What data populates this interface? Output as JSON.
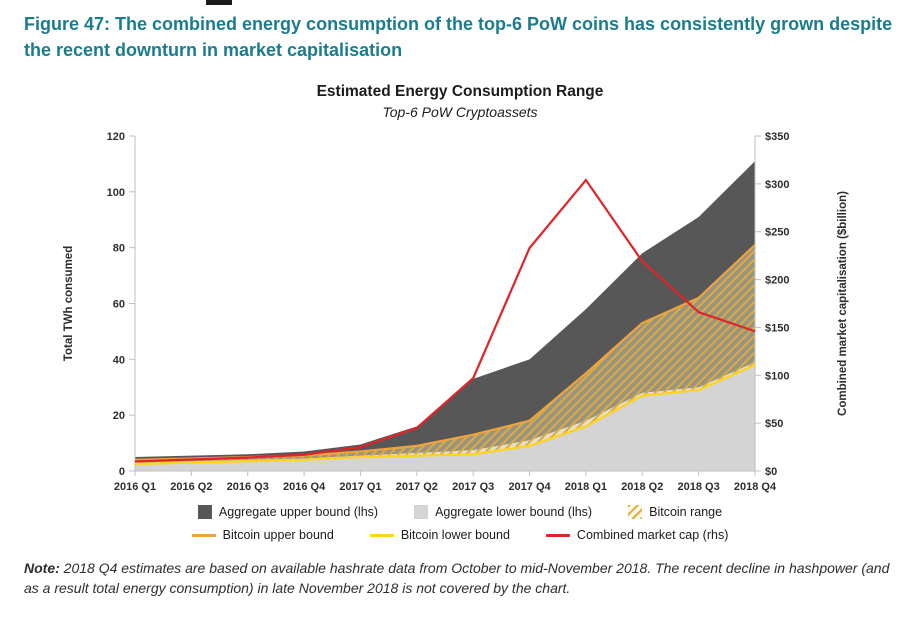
{
  "figure": {
    "title": "Figure 47: The combined energy consumption of the top-6 PoW coins has consistently grown despite the recent downturn in market capitalisation"
  },
  "note": {
    "label": "Note:",
    "text": " 2018 Q4 estimates are based on available hashrate data from October to mid-November 2018. The recent decline in hashpower (and as a result total energy consumption) in late November 2018 is not covered by the chart."
  },
  "colors": {
    "figure_title": "#1b7c8e",
    "aggregate_upper": "#575757",
    "aggregate_lower": "#d4d4d4",
    "bitcoin_hatch": "#dcab3c",
    "bitcoin_hatch_bg": "#faf0c8",
    "bitcoin_upper": "#f0a33c",
    "bitcoin_lower": "#ffd41c",
    "market_cap": "#e02428",
    "axis": "#bfbfbf",
    "text": "#2e2e2e"
  },
  "chart_data": {
    "type": "area",
    "title": "Estimated Energy Consumption Range",
    "subtitle": "Top-6 PoW Cryptoassets",
    "categories": [
      "2016 Q1",
      "2016 Q2",
      "2016 Q3",
      "2016 Q4",
      "2017 Q1",
      "2017 Q2",
      "2017 Q3",
      "2017 Q4",
      "2018 Q1",
      "2018 Q2",
      "2018 Q3",
      "2018 Q4"
    ],
    "left_axis": {
      "label": "Total TWh consumed",
      "min": 0,
      "max": 120,
      "tick_step": 20,
      "tick_prefix": ""
    },
    "right_axis": {
      "label": "Combined market capitalisation ($billion)",
      "min": 0,
      "max": 350,
      "tick_step": 50,
      "tick_prefix": "$"
    },
    "grid": false,
    "series": [
      {
        "id": "aggregate_upper",
        "name": "Aggregate upper bound (lhs)",
        "type": "area",
        "axis": "left",
        "color": "aggregate_upper",
        "swatch": "box",
        "values": [
          5,
          5.5,
          6,
          7,
          9.5,
          16,
          33,
          40,
          58,
          78,
          91,
          111
        ]
      },
      {
        "id": "aggregate_lower",
        "name": "Aggregate lower bound (lhs)",
        "type": "area",
        "axis": "left",
        "color": "aggregate_lower",
        "swatch": "box",
        "values": [
          3,
          3.5,
          4,
          4.5,
          5.5,
          6.5,
          7.5,
          11,
          18,
          28,
          30,
          39
        ]
      },
      {
        "id": "bitcoin_range",
        "name": "Bitcoin range",
        "type": "band",
        "axis": "left",
        "color": "bitcoin_hatch",
        "swatch": "hatch",
        "upper_from": "bitcoin_upper",
        "lower_from": "bitcoin_lower"
      },
      {
        "id": "bitcoin_upper",
        "name": "Bitcoin upper bound",
        "type": "line",
        "axis": "left",
        "color": "bitcoin_upper",
        "swatch": "line",
        "values": [
          4,
          4.5,
          5,
          5.5,
          7,
          9,
          13,
          18,
          35,
          53,
          62,
          81
        ]
      },
      {
        "id": "bitcoin_lower",
        "name": "Bitcoin lower bound",
        "type": "line",
        "axis": "left",
        "color": "bitcoin_lower",
        "swatch": "line",
        "values": [
          2.5,
          3,
          3.5,
          4,
          5,
          5.5,
          6,
          9,
          16,
          27,
          29,
          38
        ]
      },
      {
        "id": "market_cap",
        "name": "Combined market cap (rhs)",
        "type": "line",
        "axis": "right",
        "color": "market_cap",
        "swatch": "line",
        "values": [
          10,
          12,
          14,
          17,
          25,
          45,
          97,
          233,
          304,
          219,
          166,
          146
        ]
      }
    ],
    "legend": {
      "position": "bottom",
      "rows": [
        [
          "aggregate_upper",
          "aggregate_lower",
          "bitcoin_range"
        ],
        [
          "bitcoin_upper",
          "bitcoin_lower",
          "market_cap"
        ]
      ]
    }
  }
}
